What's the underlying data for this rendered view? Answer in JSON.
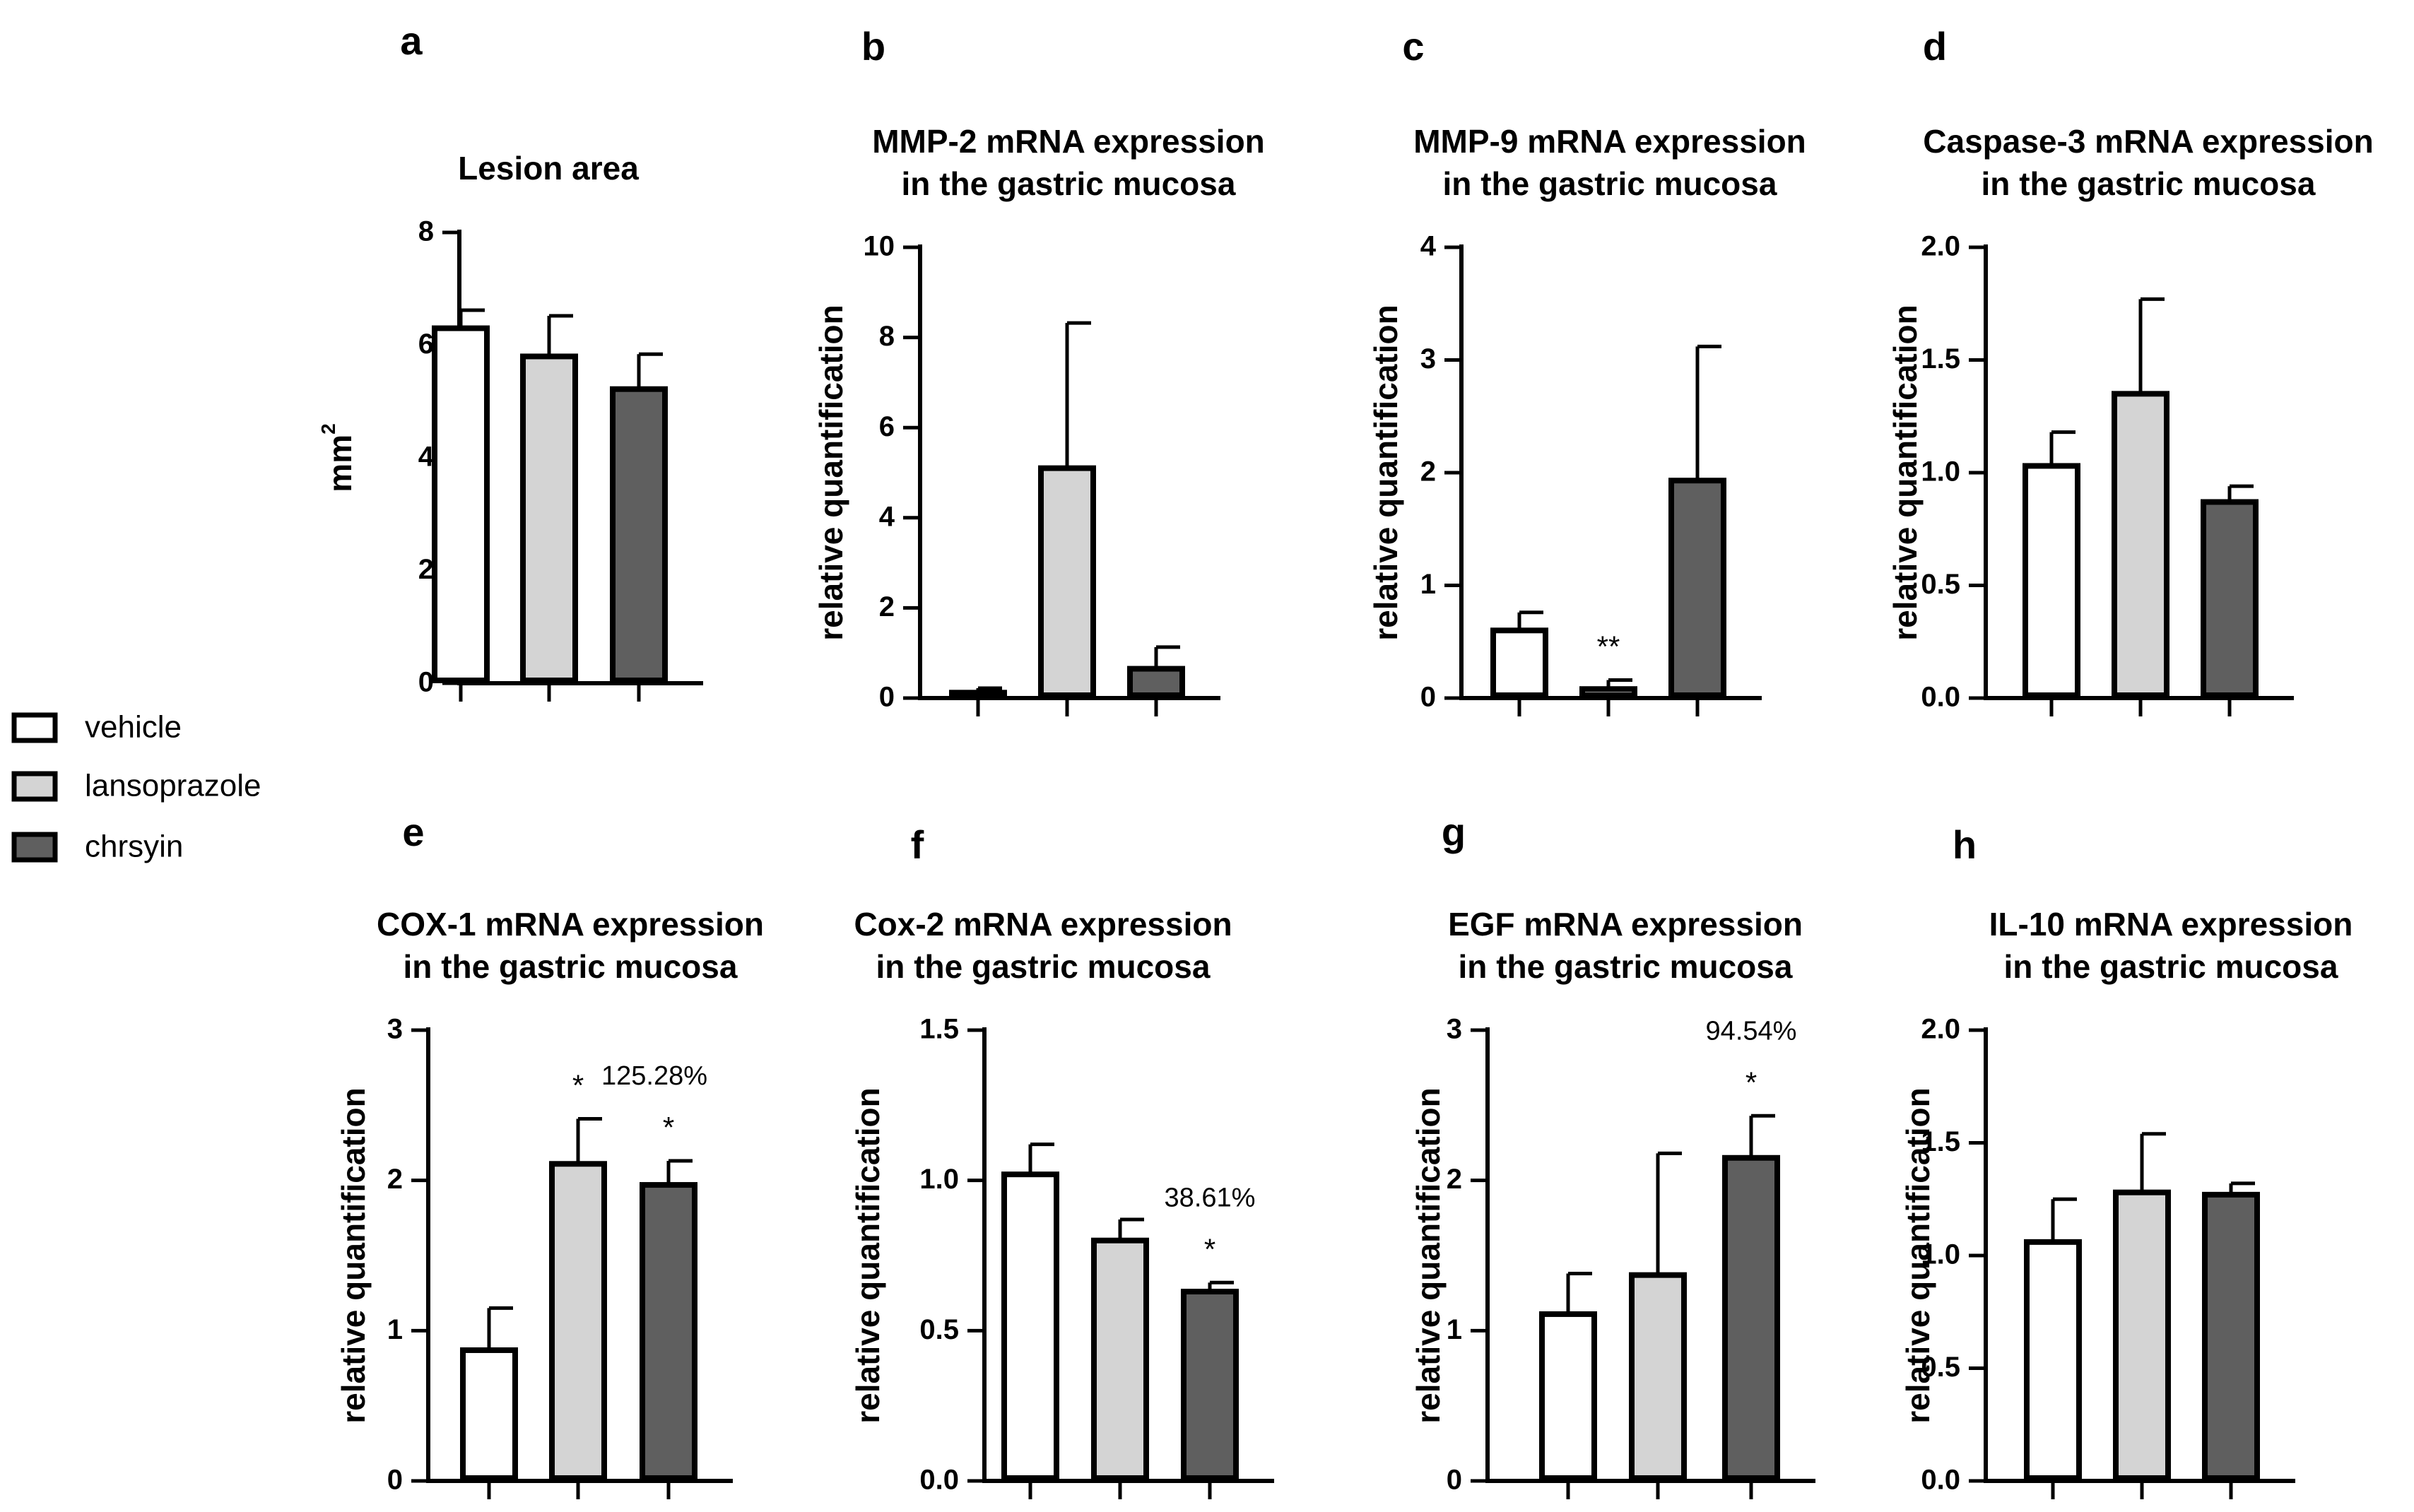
{
  "legend": {
    "items": [
      {
        "label": "vehicle",
        "color": "#ffffff"
      },
      {
        "label": "lansoprazole",
        "color": "#d4d4d4"
      },
      {
        "label": "chrsyin",
        "color": "#5f5f5f"
      }
    ]
  },
  "chart_data": [
    {
      "panel": "a",
      "type": "bar",
      "title": [
        "Lesion area"
      ],
      "ylabel": "mm",
      "ylabel_sup": "2",
      "categories": [
        "vehicle",
        "lansoprazole",
        "chrsyin"
      ],
      "values": [
        6.3,
        5.8,
        5.22
      ],
      "errors": [
        0.32,
        0.72,
        0.62
      ],
      "ylim": [
        0,
        8
      ],
      "yticks": [
        "0",
        "2",
        "4",
        "6",
        "8"
      ],
      "ytick_values": [
        0,
        2,
        4,
        6,
        8
      ],
      "stars": [
        "",
        "",
        ""
      ],
      "percent": ""
    },
    {
      "panel": "b",
      "type": "bar",
      "title": [
        "MMP-2 mRNA expression",
        "in the gastric mucosa"
      ],
      "ylabel": "relative quantification",
      "ylabel_sup": "",
      "categories": [
        "vehicle",
        "lansoprazole",
        "chrsyin"
      ],
      "values": [
        0.12,
        5.1,
        0.65
      ],
      "errors": [
        0.1,
        3.22,
        0.48
      ],
      "ylim": [
        0,
        10
      ],
      "yticks": [
        "0",
        "2",
        "4",
        "6",
        "8",
        "10"
      ],
      "ytick_values": [
        0,
        2,
        4,
        6,
        8,
        10
      ],
      "stars": [
        "",
        "",
        ""
      ],
      "percent": ""
    },
    {
      "panel": "c",
      "type": "bar",
      "title": [
        "MMP-9 mRNA expression",
        "in the gastric mucosa"
      ],
      "ylabel": "relative quantification",
      "ylabel_sup": "",
      "categories": [
        "vehicle",
        "lansoprazole",
        "chrsyin"
      ],
      "values": [
        0.6,
        0.08,
        1.93
      ],
      "errors": [
        0.16,
        0.08,
        1.19
      ],
      "ylim": [
        0,
        4
      ],
      "yticks": [
        "0",
        "1",
        "2",
        "3",
        "4"
      ],
      "ytick_values": [
        0,
        1,
        2,
        3,
        4
      ],
      "stars": [
        "",
        "**",
        ""
      ],
      "percent": ""
    },
    {
      "panel": "d",
      "type": "bar",
      "title": [
        "Caspase-3 mRNA expression",
        "in the gastric mucosa"
      ],
      "ylabel": "relative quantification",
      "ylabel_sup": "",
      "categories": [
        "vehicle",
        "lansoprazole",
        "chrsyin"
      ],
      "values": [
        1.03,
        1.35,
        0.87
      ],
      "errors": [
        0.15,
        0.42,
        0.07
      ],
      "ylim": [
        0,
        2
      ],
      "yticks": [
        "0.0",
        "0.5",
        "1.0",
        "1.5",
        "2.0"
      ],
      "ytick_values": [
        0,
        0.5,
        1,
        1.5,
        2
      ],
      "stars": [
        "",
        "",
        ""
      ],
      "percent": ""
    },
    {
      "panel": "e",
      "type": "bar",
      "title": [
        "COX-1 mRNA expression",
        "in the gastric mucosa"
      ],
      "ylabel": "relative quantification",
      "ylabel_sup": "",
      "categories": [
        "vehicle",
        "lansoprazole",
        "chrsyin"
      ],
      "values": [
        0.87,
        2.11,
        1.97
      ],
      "errors": [
        0.28,
        0.3,
        0.16
      ],
      "ylim": [
        0,
        3
      ],
      "yticks": [
        "0",
        "1",
        "2",
        "3"
      ],
      "ytick_values": [
        0,
        1,
        2,
        3
      ],
      "stars": [
        "",
        "*",
        "*"
      ],
      "percent": "125.28%"
    },
    {
      "panel": "f",
      "type": "bar",
      "title": [
        "Cox-2 mRNA expression",
        "in the gastric mucosa"
      ],
      "ylabel": "relative quantification",
      "ylabel_sup": "",
      "categories": [
        "vehicle",
        "lansoprazole",
        "chrsyin"
      ],
      "values": [
        1.02,
        0.8,
        0.63
      ],
      "errors": [
        0.1,
        0.07,
        0.03
      ],
      "ylim": [
        0,
        1.5
      ],
      "yticks": [
        "0.0",
        "0.5",
        "1.0",
        "1.5"
      ],
      "ytick_values": [
        0,
        0.5,
        1,
        1.5
      ],
      "stars": [
        "",
        "",
        "*"
      ],
      "percent": "38.61%"
    },
    {
      "panel": "g",
      "type": "bar",
      "title": [
        "EGF mRNA expression",
        "in the gastric mucosa"
      ],
      "ylabel": "relative quantification",
      "ylabel_sup": "",
      "categories": [
        "vehicle",
        "lansoprazole",
        "chrsyin"
      ],
      "values": [
        1.11,
        1.37,
        2.15
      ],
      "errors": [
        0.27,
        0.81,
        0.28
      ],
      "ylim": [
        0,
        3
      ],
      "yticks": [
        "0",
        "1",
        "2",
        "3"
      ],
      "ytick_values": [
        0,
        1,
        2,
        3
      ],
      "stars": [
        "",
        "",
        "*"
      ],
      "percent": "94.54%"
    },
    {
      "panel": "h",
      "type": "bar",
      "title": [
        "IL-10 mRNA expression",
        "in the gastric mucosa"
      ],
      "ylabel": "relative quantification",
      "ylabel_sup": "",
      "categories": [
        "vehicle",
        "lansoprazole",
        "chrsyin"
      ],
      "values": [
        1.06,
        1.28,
        1.27
      ],
      "errors": [
        0.19,
        0.26,
        0.05
      ],
      "ylim": [
        0,
        2
      ],
      "yticks": [
        "0.0",
        "0.5",
        "1.0",
        "1.5",
        "2.0"
      ],
      "ytick_values": [
        0,
        0.5,
        1,
        1.5,
        2
      ],
      "stars": [
        "",
        "",
        ""
      ],
      "percent": ""
    }
  ]
}
